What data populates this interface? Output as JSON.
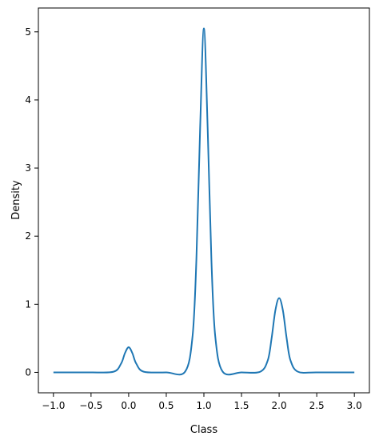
{
  "chart_data": {
    "type": "line",
    "xlabel": "Class",
    "ylabel": "Density",
    "xlim": [
      -1.2,
      3.2
    ],
    "ylim": [
      -0.3,
      5.35
    ],
    "xticks": [
      -1.0,
      -0.5,
      0.0,
      0.5,
      1.0,
      1.5,
      2.0,
      2.5,
      3.0
    ],
    "xtick_labels": [
      "−1.0",
      "−0.5",
      "0.0",
      "0.5",
      "1.0",
      "1.5",
      "2.0",
      "2.5",
      "3.0"
    ],
    "yticks": [
      0,
      1,
      2,
      3,
      4,
      5
    ],
    "ytick_labels": [
      "0",
      "1",
      "2",
      "3",
      "4",
      "5"
    ],
    "grid": false,
    "series": [
      {
        "color": "#1f77b4",
        "x": [
          -1.0,
          -0.5,
          -0.2,
          -0.1,
          -0.05,
          0.0,
          0.05,
          0.1,
          0.2,
          0.5,
          0.75,
          0.85,
          0.9,
          0.95,
          1.0,
          1.05,
          1.1,
          1.15,
          1.25,
          1.5,
          1.75,
          1.85,
          1.9,
          1.95,
          2.0,
          2.05,
          2.1,
          2.15,
          2.25,
          2.5,
          3.0
        ],
        "y": [
          0.0,
          0.0,
          0.01,
          0.13,
          0.28,
          0.37,
          0.28,
          0.13,
          0.01,
          0.0,
          0.01,
          0.54,
          1.65,
          3.59,
          5.05,
          3.59,
          1.65,
          0.54,
          0.01,
          0.0,
          0.01,
          0.18,
          0.5,
          0.91,
          1.09,
          0.91,
          0.5,
          0.18,
          0.01,
          0.0,
          0.0
        ]
      }
    ]
  }
}
